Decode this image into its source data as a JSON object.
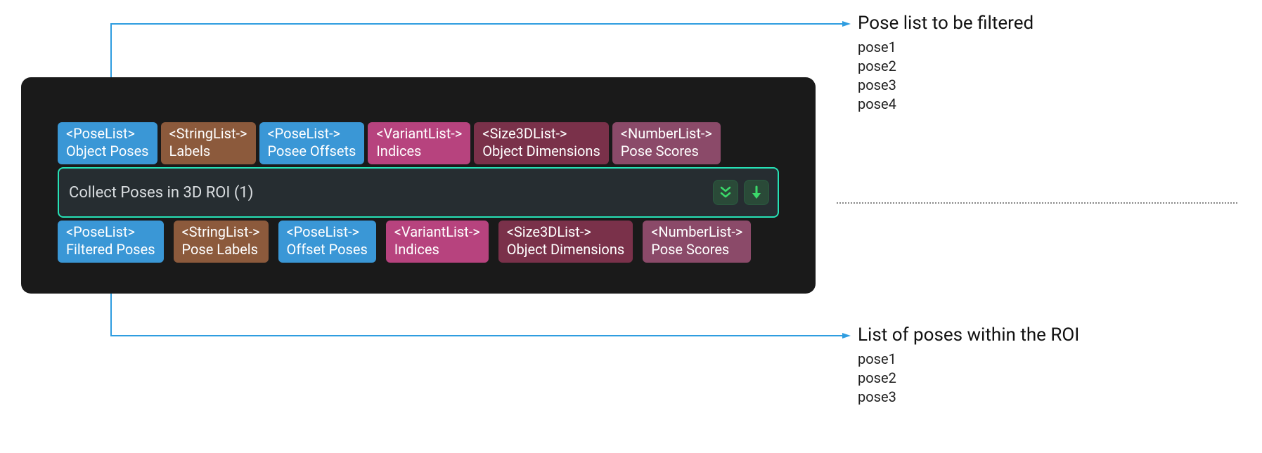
{
  "colors": {
    "panel_bg": "#1a1a1a",
    "title_bg": "#262d31",
    "title_border": "#26e2b6",
    "callout_stroke": "#2f9de0",
    "icon_green": "#3bd96a",
    "port_blue": "#3a97d6",
    "port_brown": "#8c5a3c",
    "port_pink": "#b7437e",
    "port_maroon": "#7a314a",
    "port_plum": "#8b4a69"
  },
  "node": {
    "title": "Collect Poses in 3D ROI (1)",
    "inputs": [
      {
        "type": "<PoseList>",
        "label": "Object Poses",
        "color": "c-blue"
      },
      {
        "type": "<StringList->",
        "label": "Labels",
        "color": "c-brown"
      },
      {
        "type": "<PoseList->",
        "label": "Posee Offsets",
        "color": "c-blue"
      },
      {
        "type": "<VariantList->",
        "label": "Indices",
        "color": "c-pink"
      },
      {
        "type": "<Size3DList->",
        "label": "Object Dimensions",
        "color": "c-maroon"
      },
      {
        "type": "<NumberList->",
        "label": "Pose Scores",
        "color": "c-plum"
      }
    ],
    "outputs": [
      {
        "type": "<PoseList>",
        "label": "Filtered Poses",
        "color": "c-blue"
      },
      {
        "type": "<StringList->",
        "label": "Pose Labels",
        "color": "c-brown"
      },
      {
        "type": "<PoseList->",
        "label": "Offset Poses",
        "color": "c-blue"
      },
      {
        "type": "<VariantList->",
        "label": "Indices",
        "color": "c-pink"
      },
      {
        "type": "<Size3DList->",
        "label": "Object Dimensions",
        "color": "c-maroon"
      },
      {
        "type": "<NumberList->",
        "label": "Pose Scores",
        "color": "c-plum"
      }
    ]
  },
  "annotation_top": {
    "title": "Pose list to be filtered",
    "items": [
      "pose1",
      "pose2",
      "pose3",
      "pose4"
    ]
  },
  "annotation_bottom": {
    "title": "List of poses within the ROI",
    "items": [
      "pose1",
      "pose2",
      "pose3"
    ]
  }
}
